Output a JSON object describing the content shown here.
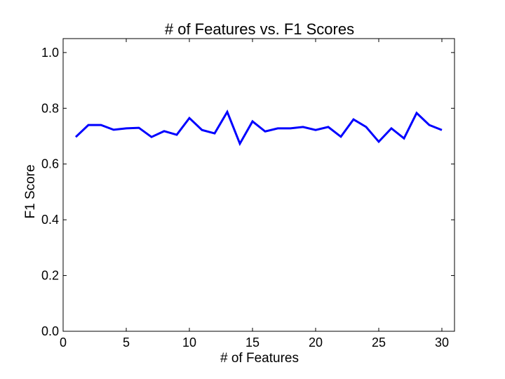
{
  "chart_data": {
    "type": "line",
    "title": "# of Features vs. F1 Scores",
    "xlabel": "# of Features",
    "ylabel": "F1 Score",
    "xlim": [
      0,
      31
    ],
    "ylim": [
      0.0,
      1.05
    ],
    "xticks": [
      0,
      5,
      10,
      15,
      20,
      25,
      30
    ],
    "xtick_labels": [
      "0",
      "5",
      "10",
      "15",
      "20",
      "25",
      "30"
    ],
    "yticks": [
      0.0,
      0.2,
      0.4,
      0.6,
      0.8,
      1.0
    ],
    "ytick_labels": [
      "0.0",
      "0.2",
      "0.4",
      "0.6",
      "0.8",
      "1.0"
    ],
    "grid": false,
    "series": [
      {
        "color": "#0000ff",
        "x": [
          1,
          2,
          3,
          4,
          5,
          6,
          7,
          8,
          9,
          10,
          11,
          12,
          13,
          14,
          15,
          16,
          17,
          18,
          19,
          20,
          21,
          22,
          23,
          24,
          25,
          26,
          27,
          28,
          29,
          30
        ],
        "y": [
          0.697,
          0.74,
          0.74,
          0.723,
          0.728,
          0.73,
          0.697,
          0.718,
          0.705,
          0.765,
          0.722,
          0.71,
          0.787,
          0.673,
          0.753,
          0.717,
          0.728,
          0.728,
          0.733,
          0.722,
          0.733,
          0.698,
          0.76,
          0.733,
          0.68,
          0.728,
          0.692,
          0.783,
          0.74,
          0.722
        ]
      }
    ]
  }
}
